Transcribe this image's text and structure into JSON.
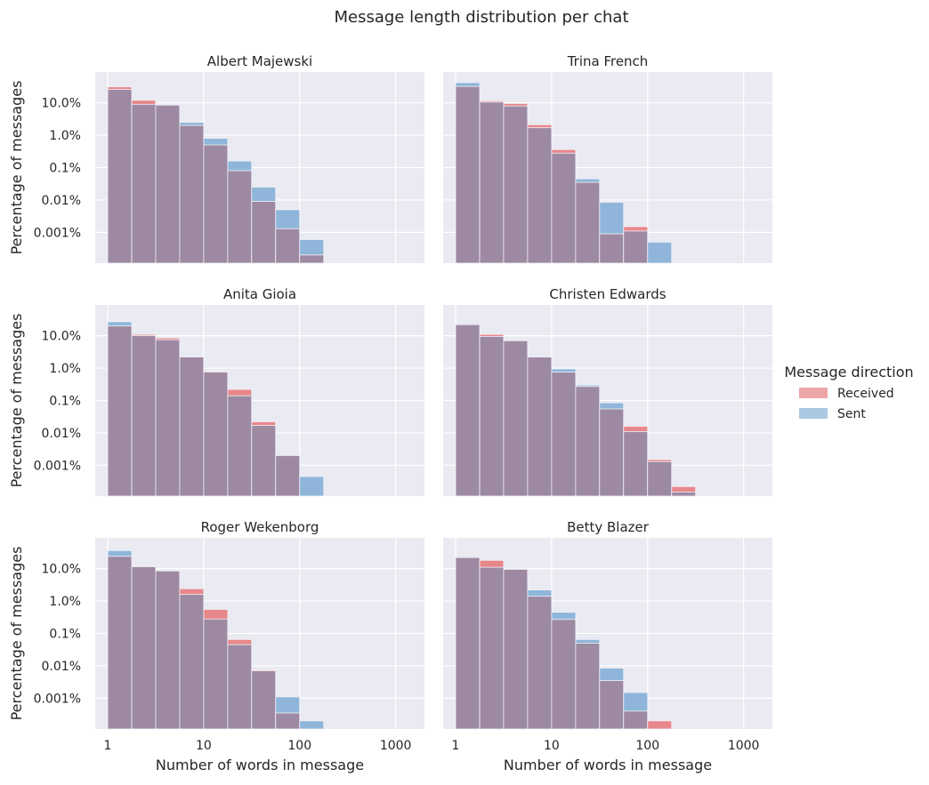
{
  "figure": {
    "title": "Message length distribution per chat",
    "xlabel": "Number of words in message",
    "ylabel": "Percentage of messages",
    "x_tick_labels": [
      "1",
      "10",
      "100",
      "1000"
    ],
    "y_tick_labels": [
      "10.0%",
      "1.0%",
      "0.1%",
      "0.01%",
      "0.001%"
    ]
  },
  "legend": {
    "title": "Message direction",
    "items": [
      {
        "label": "Received",
        "color": "#e8878b"
      },
      {
        "label": "Sent",
        "color": "#8fb6da"
      }
    ]
  },
  "colors": {
    "background": "#eaeaf2",
    "grid": "#ffffff",
    "received": "#e8878b",
    "sent": "#8fb6da",
    "overlap": "#9d8aa2"
  },
  "chart_data": [
    {
      "type": "bar",
      "title": "Albert Majewski",
      "xlabel": "",
      "ylabel": "Percentage of messages",
      "x_scale": "log",
      "y_scale": "log",
      "bin_edges": [
        1,
        1.78,
        3.16,
        5.62,
        10,
        17.8,
        31.6,
        56.2,
        100,
        178,
        316
      ],
      "series": [
        {
          "name": "Received",
          "values": [
            31,
            12,
            8.5,
            2,
            0.5,
            0.08,
            0.009,
            0.0013,
            0.0002,
            null
          ]
        },
        {
          "name": "Sent",
          "values": [
            26,
            9,
            8.5,
            2.5,
            0.8,
            0.16,
            0.025,
            0.005,
            0.0006,
            null
          ]
        }
      ]
    },
    {
      "type": "bar",
      "title": "Trina French",
      "xlabel": "",
      "ylabel": "",
      "x_scale": "log",
      "y_scale": "log",
      "bin_edges": [
        1,
        1.78,
        3.16,
        5.62,
        10,
        17.8,
        31.6,
        56.2,
        100,
        178,
        316
      ],
      "series": [
        {
          "name": "Received",
          "values": [
            32,
            11.5,
            9.5,
            2.1,
            0.36,
            0.035,
            0.0009,
            0.0015,
            null,
            null
          ]
        },
        {
          "name": "Sent",
          "values": [
            42,
            10.5,
            8,
            1.7,
            0.28,
            0.045,
            0.0085,
            0.0011,
            0.0005,
            null
          ]
        }
      ]
    },
    {
      "type": "bar",
      "title": "Anita Gioia",
      "xlabel": "",
      "ylabel": "Percentage of messages",
      "x_scale": "log",
      "y_scale": "log",
      "bin_edges": [
        1,
        1.78,
        3.16,
        5.62,
        10,
        17.8,
        31.6,
        56.2,
        100,
        178,
        316
      ],
      "series": [
        {
          "name": "Received",
          "values": [
            20,
            11,
            8.5,
            2.2,
            0.8,
            0.22,
            0.022,
            0.002,
            null,
            null
          ]
        },
        {
          "name": "Sent",
          "values": [
            27,
            10,
            7.5,
            2.2,
            0.75,
            0.14,
            0.017,
            0.002,
            0.00045,
            null
          ]
        }
      ]
    },
    {
      "type": "bar",
      "title": "Christen Edwards",
      "xlabel": "",
      "ylabel": "",
      "x_scale": "log",
      "y_scale": "log",
      "bin_edges": [
        1,
        1.78,
        3.16,
        5.62,
        10,
        17.8,
        31.6,
        56.2,
        100,
        178,
        316,
        562
      ],
      "series": [
        {
          "name": "Received",
          "values": [
            22,
            11,
            7,
            2.2,
            0.75,
            0.27,
            0.055,
            0.016,
            0.0015,
            0.00022,
            null
          ]
        },
        {
          "name": "Sent",
          "values": [
            22,
            9.5,
            7,
            2.2,
            0.95,
            0.3,
            0.085,
            0.011,
            0.0013,
            0.00015,
            null
          ]
        }
      ]
    },
    {
      "type": "bar",
      "title": "Roger Wekenborg",
      "xlabel": "Number of words in message",
      "ylabel": "Percentage of messages",
      "x_scale": "log",
      "y_scale": "log",
      "bin_edges": [
        1,
        1.78,
        3.16,
        5.62,
        10,
        17.8,
        31.6,
        56.2,
        100,
        178,
        316
      ],
      "series": [
        {
          "name": "Received",
          "values": [
            24,
            12,
            8.5,
            2.4,
            0.55,
            0.065,
            0.0075,
            0.00035,
            null,
            null
          ]
        },
        {
          "name": "Sent",
          "values": [
            36,
            11.5,
            8.5,
            1.6,
            0.28,
            0.045,
            0.007,
            0.0011,
            0.0002,
            null
          ]
        }
      ]
    },
    {
      "type": "bar",
      "title": "Betty Blazer",
      "xlabel": "Number of words in message",
      "ylabel": "",
      "x_scale": "log",
      "y_scale": "log",
      "bin_edges": [
        1,
        1.78,
        3.16,
        5.62,
        10,
        17.8,
        31.6,
        56.2,
        100,
        178,
        316
      ],
      "series": [
        {
          "name": "Received",
          "values": [
            22,
            18,
            10,
            1.4,
            0.27,
            0.05,
            0.0035,
            0.0004,
            0.0002,
            null
          ]
        },
        {
          "name": "Sent",
          "values": [
            22,
            11,
            9.5,
            2.2,
            0.45,
            0.065,
            0.0085,
            0.0015,
            null,
            null
          ]
        }
      ]
    }
  ]
}
